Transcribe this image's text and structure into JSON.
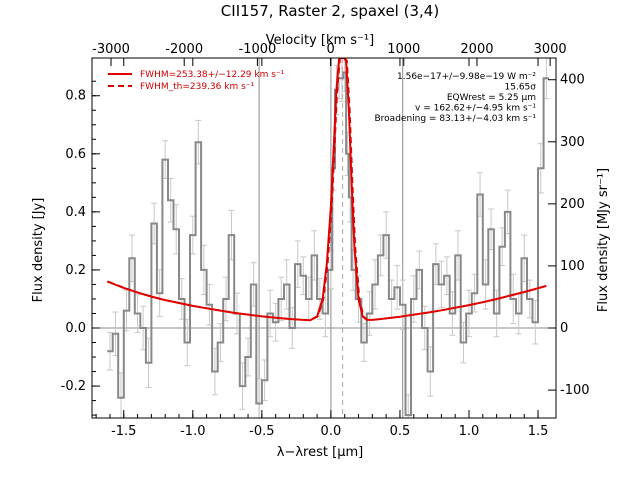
{
  "chart_data": {
    "type": "line",
    "title": "CII157, Raster 2, spaxel (3,4)",
    "xlabel": "λ−λrest [μm]",
    "ylabel": "Flux density [Jy]",
    "xlabel_top": "Velocity [km s⁻¹]",
    "ylabel_right": "Flux density [MJy sr⁻¹]",
    "xlim": [
      -1.73,
      1.63
    ],
    "ylim": [
      -0.31,
      0.93
    ],
    "ylim_right": [
      -145,
      435
    ],
    "vlim": [
      -3260,
      3080
    ],
    "x_ticks": [
      "-1.5",
      "-1.0",
      "-0.5",
      "0.0",
      "0.5",
      "1.0",
      "1.5"
    ],
    "y_ticks": [
      "-0.2",
      "0.0",
      "0.2",
      "0.4",
      "0.6",
      "0.8"
    ],
    "v_ticks": [
      "-3000",
      "-2000",
      "-1000",
      "0",
      "1000",
      "2000",
      "3000"
    ],
    "y_right_ticks": [
      "-100",
      "0",
      "100",
      "200",
      "300",
      "400"
    ],
    "legend": {
      "items": [
        {
          "label": "FWHM=253.38+/−12.29 km s⁻¹",
          "style": "solid",
          "color": "#e00000"
        },
        {
          "label": "FWHM_th=239.36 km s⁻¹",
          "style": "dashed",
          "color": "#e00000"
        }
      ],
      "position": "top-left"
    },
    "annotations": [
      "1.56e−17+/−9.98e−19 W m⁻²",
      "15.65σ",
      "EQWrest = 5.25 μm",
      "v = 162.62+/−4.95 km s⁻¹",
      "Broadening = 83.13+/−4.03 km s⁻¹"
    ],
    "vertical_lines": [
      -0.52,
      0.0,
      0.52
    ],
    "line_center": 0.085,
    "grid": false,
    "series": [
      {
        "kind": "spectrum",
        "color": "#888888",
        "x": [
          -1.6,
          -1.56,
          -1.52,
          -1.48,
          -1.44,
          -1.4,
          -1.36,
          -1.32,
          -1.28,
          -1.24,
          -1.2,
          -1.16,
          -1.12,
          -1.08,
          -1.04,
          -1.0,
          -0.96,
          -0.92,
          -0.88,
          -0.84,
          -0.8,
          -0.76,
          -0.72,
          -0.68,
          -0.64,
          -0.6,
          -0.56,
          -0.52,
          -0.48,
          -0.44,
          -0.4,
          -0.36,
          -0.32,
          -0.28,
          -0.24,
          -0.2,
          -0.16,
          -0.12,
          -0.08,
          -0.04,
          0.0,
          0.02,
          0.04,
          0.06,
          0.08,
          0.1,
          0.12,
          0.14,
          0.16,
          0.2,
          0.24,
          0.28,
          0.32,
          0.36,
          0.4,
          0.44,
          0.48,
          0.52,
          0.56,
          0.6,
          0.64,
          0.68,
          0.72,
          0.76,
          0.8,
          0.84,
          0.88,
          0.92,
          0.96,
          1.0,
          1.04,
          1.08,
          1.12,
          1.16,
          1.2,
          1.24,
          1.28,
          1.32,
          1.36,
          1.4,
          1.44,
          1.48,
          1.52,
          1.56
        ],
        "y": [
          -0.08,
          -0.02,
          -0.24,
          0.06,
          0.24,
          0.05,
          0.0,
          -0.12,
          0.36,
          0.12,
          0.58,
          0.44,
          0.34,
          0.1,
          -0.05,
          0.32,
          0.64,
          0.2,
          0.08,
          -0.15,
          -0.05,
          0.1,
          0.32,
          0.05,
          -0.2,
          -0.1,
          0.15,
          -0.26,
          -0.18,
          0.05,
          0.02,
          0.1,
          0.15,
          0.0,
          0.22,
          0.18,
          0.1,
          0.25,
          0.1,
          0.05,
          0.2,
          0.55,
          0.82,
          0.86,
          0.86,
          0.88,
          0.6,
          0.45,
          0.2,
          0.1,
          -0.05,
          0.05,
          0.15,
          0.25,
          0.32,
          0.1,
          0.14,
          0.08,
          -0.3,
          0.1,
          0.2,
          0.0,
          -0.15,
          0.22,
          0.15,
          0.18,
          0.05,
          0.25,
          -0.05,
          0.05,
          0.12,
          0.46,
          0.15,
          0.34,
          0.05,
          0.28,
          0.4,
          0.1,
          0.05,
          0.24,
          0.1,
          0.02,
          0.55,
          0.86
        ]
      },
      {
        "kind": "fit",
        "name": "FWHM=253.38+/−12.29 km s⁻¹",
        "color": "#e00000",
        "x": [
          -1.62,
          -1.5,
          -1.4,
          -1.3,
          -1.2,
          -1.1,
          -1.0,
          -0.9,
          -0.8,
          -0.7,
          -0.6,
          -0.5,
          -0.4,
          -0.3,
          -0.2,
          -0.15,
          -0.1,
          -0.06,
          -0.03,
          0.0,
          0.02,
          0.04,
          0.06,
          0.075,
          0.085,
          0.095,
          0.11,
          0.13,
          0.15,
          0.17,
          0.2,
          0.23,
          0.26,
          0.3,
          0.4,
          0.5,
          0.6,
          0.7,
          0.8,
          0.9,
          1.0,
          1.1,
          1.2,
          1.3,
          1.4,
          1.5,
          1.56
        ],
        "y": [
          0.16,
          0.138,
          0.122,
          0.108,
          0.096,
          0.086,
          0.076,
          0.068,
          0.06,
          0.052,
          0.046,
          0.04,
          0.035,
          0.031,
          0.028,
          0.027,
          0.04,
          0.1,
          0.22,
          0.42,
          0.62,
          0.82,
          0.93,
          0.93,
          0.93,
          0.93,
          0.92,
          0.75,
          0.5,
          0.28,
          0.1,
          0.04,
          0.028,
          0.028,
          0.033,
          0.039,
          0.046,
          0.053,
          0.061,
          0.07,
          0.079,
          0.089,
          0.1,
          0.112,
          0.124,
          0.137,
          0.145
        ]
      }
    ]
  }
}
